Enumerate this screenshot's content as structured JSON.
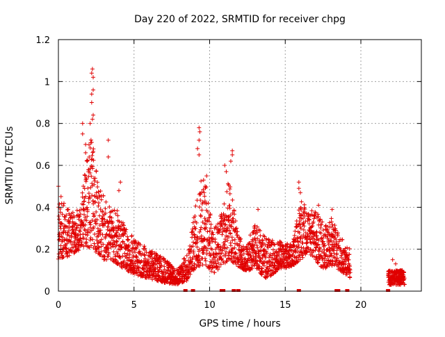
{
  "chart_data": {
    "type": "scatter",
    "title": "Day 220 of 2022, SRMTID for receiver chpg",
    "xlabel": "GPS time / hours",
    "ylabel": "SRMTID / TECUs",
    "xlim": [
      0,
      24
    ],
    "ylim": [
      0,
      1.2
    ],
    "x_ticks": [
      0,
      5,
      10,
      15,
      20
    ],
    "x_tick_labels": [
      "0",
      "5",
      "10",
      "15",
      "20"
    ],
    "y_ticks": [
      0,
      0.2,
      0.4,
      0.6,
      0.8,
      1.0,
      1.2
    ],
    "y_tick_labels": [
      "0",
      "0.2",
      "0.4",
      "0.6",
      "0.8",
      "1",
      "1.2"
    ],
    "grid": true,
    "marker": "plus",
    "marker_color": "#e00000",
    "envelope": [
      {
        "t": 0.0,
        "lo": 0.15,
        "hi": 0.48
      },
      {
        "t": 0.5,
        "lo": 0.16,
        "hi": 0.4
      },
      {
        "t": 1.0,
        "lo": 0.18,
        "hi": 0.38
      },
      {
        "t": 1.5,
        "lo": 0.2,
        "hi": 0.4
      },
      {
        "t": 1.8,
        "lo": 0.22,
        "hi": 0.65
      },
      {
        "t": 2.2,
        "lo": 0.2,
        "hi": 0.75
      },
      {
        "t": 2.6,
        "lo": 0.18,
        "hi": 0.55
      },
      {
        "t": 3.0,
        "lo": 0.15,
        "hi": 0.45
      },
      {
        "t": 3.5,
        "lo": 0.15,
        "hi": 0.4
      },
      {
        "t": 4.0,
        "lo": 0.12,
        "hi": 0.38
      },
      {
        "t": 4.5,
        "lo": 0.1,
        "hi": 0.3
      },
      {
        "t": 5.0,
        "lo": 0.08,
        "hi": 0.25
      },
      {
        "t": 6.0,
        "lo": 0.06,
        "hi": 0.2
      },
      {
        "t": 7.0,
        "lo": 0.04,
        "hi": 0.16
      },
      {
        "t": 7.8,
        "lo": 0.03,
        "hi": 0.1
      },
      {
        "t": 8.5,
        "lo": 0.05,
        "hi": 0.18
      },
      {
        "t": 9.0,
        "lo": 0.1,
        "hi": 0.38
      },
      {
        "t": 9.4,
        "lo": 0.12,
        "hi": 0.55
      },
      {
        "t": 9.8,
        "lo": 0.12,
        "hi": 0.52
      },
      {
        "t": 10.2,
        "lo": 0.08,
        "hi": 0.28
      },
      {
        "t": 10.8,
        "lo": 0.12,
        "hi": 0.38
      },
      {
        "t": 11.3,
        "lo": 0.15,
        "hi": 0.55
      },
      {
        "t": 11.8,
        "lo": 0.12,
        "hi": 0.3
      },
      {
        "t": 12.3,
        "lo": 0.1,
        "hi": 0.2
      },
      {
        "t": 13.0,
        "lo": 0.1,
        "hi": 0.32
      },
      {
        "t": 13.8,
        "lo": 0.06,
        "hi": 0.25
      },
      {
        "t": 14.5,
        "lo": 0.1,
        "hi": 0.24
      },
      {
        "t": 15.5,
        "lo": 0.12,
        "hi": 0.22
      },
      {
        "t": 16.0,
        "lo": 0.15,
        "hi": 0.45
      },
      {
        "t": 16.5,
        "lo": 0.18,
        "hi": 0.38
      },
      {
        "t": 17.0,
        "lo": 0.15,
        "hi": 0.4
      },
      {
        "t": 17.5,
        "lo": 0.1,
        "hi": 0.32
      },
      {
        "t": 18.0,
        "lo": 0.12,
        "hi": 0.36
      },
      {
        "t": 18.5,
        "lo": 0.1,
        "hi": 0.28
      },
      {
        "t": 19.0,
        "lo": 0.08,
        "hi": 0.22
      },
      {
        "t": 19.3,
        "lo": 0.06,
        "hi": 0.2
      }
    ],
    "gaps": [
      [
        19.4,
        21.8
      ]
    ],
    "late_segment": {
      "t_start": 21.8,
      "t_end": 22.9,
      "lo": 0.03,
      "hi": 0.1
    },
    "spikes": [
      {
        "x": 2.25,
        "y": 1.06
      },
      {
        "x": 2.2,
        "y": 1.04
      },
      {
        "x": 2.3,
        "y": 1.02
      },
      {
        "x": 2.3,
        "y": 0.96
      },
      {
        "x": 2.2,
        "y": 0.94
      },
      {
        "x": 2.2,
        "y": 0.9
      },
      {
        "x": 2.3,
        "y": 0.84
      },
      {
        "x": 2.25,
        "y": 0.82
      },
      {
        "x": 2.1,
        "y": 0.8
      },
      {
        "x": 1.6,
        "y": 0.8
      },
      {
        "x": 1.6,
        "y": 0.75
      },
      {
        "x": 2.2,
        "y": 0.71
      },
      {
        "x": 3.3,
        "y": 0.72
      },
      {
        "x": 3.3,
        "y": 0.64
      },
      {
        "x": 1.8,
        "y": 0.7
      },
      {
        "x": 1.8,
        "y": 0.66
      },
      {
        "x": 1.9,
        "y": 0.62
      },
      {
        "x": 9.3,
        "y": 0.78
      },
      {
        "x": 9.35,
        "y": 0.76
      },
      {
        "x": 9.3,
        "y": 0.72
      },
      {
        "x": 9.2,
        "y": 0.68
      },
      {
        "x": 9.3,
        "y": 0.65
      },
      {
        "x": 11.5,
        "y": 0.67
      },
      {
        "x": 11.5,
        "y": 0.65
      },
      {
        "x": 11.4,
        "y": 0.62
      },
      {
        "x": 11.0,
        "y": 0.6
      },
      {
        "x": 11.1,
        "y": 0.57
      },
      {
        "x": 0.0,
        "y": 0.5
      },
      {
        "x": 4.1,
        "y": 0.52
      },
      {
        "x": 4.0,
        "y": 0.48
      },
      {
        "x": 15.9,
        "y": 0.52
      },
      {
        "x": 15.9,
        "y": 0.49
      },
      {
        "x": 16.0,
        "y": 0.47
      },
      {
        "x": 9.8,
        "y": 0.55
      },
      {
        "x": 9.6,
        "y": 0.53
      },
      {
        "x": 9.7,
        "y": 0.5
      },
      {
        "x": 13.2,
        "y": 0.39
      },
      {
        "x": 17.2,
        "y": 0.41
      },
      {
        "x": 18.1,
        "y": 0.39
      },
      {
        "x": 22.1,
        "y": 0.15
      },
      {
        "x": 22.3,
        "y": 0.13
      }
    ],
    "baseline_markers": [
      8.4,
      8.9,
      10.8,
      10.9,
      11.6,
      11.9,
      15.9,
      18.4,
      18.5,
      19.1,
      21.8
    ]
  }
}
